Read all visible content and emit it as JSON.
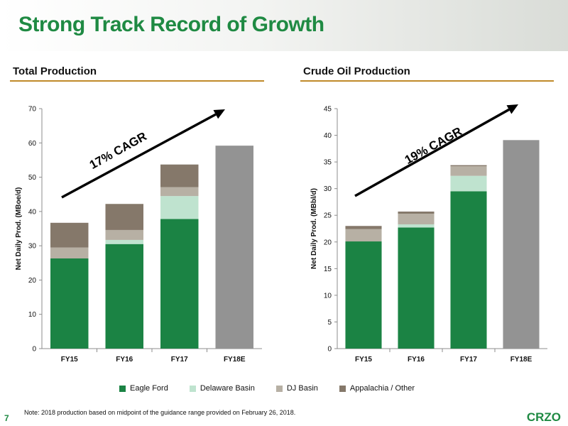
{
  "slide": {
    "title": "Strong Track Record of Growth",
    "note": "Note: 2018 production based on midpoint of the guidance range provided on February 26, 2018.",
    "page_number": "7",
    "logo": "CRZO"
  },
  "colors": {
    "eagle_ford": "#1b8344",
    "delaware": "#bfe3cf",
    "dj": "#b7b0a4",
    "appalachia": "#85786a",
    "estimate": "#939393",
    "accent": "#1f8a43",
    "rule": "#c08a2a"
  },
  "legend": [
    {
      "name": "Eagle Ford",
      "color": "#1b8344"
    },
    {
      "name": "Delaware Basin",
      "color": "#bfe3cf"
    },
    {
      "name": "DJ Basin",
      "color": "#b7b0a4"
    },
    {
      "name": "Appalachia / Other",
      "color": "#85786a"
    }
  ],
  "chart_data": [
    {
      "type": "bar",
      "stacked": true,
      "title": "Total Production",
      "ylabel": "Net Daily Prod. (MBoe/d)",
      "ylim": [
        0,
        70
      ],
      "yticks": [
        0,
        10,
        20,
        30,
        40,
        50,
        60,
        70
      ],
      "categories": [
        "FY15",
        "FY16",
        "FY17",
        "FY18E"
      ],
      "series": [
        {
          "name": "Eagle Ford",
          "values": [
            26.3,
            30.5,
            37.8,
            0
          ]
        },
        {
          "name": "Delaware Basin",
          "values": [
            0,
            1.2,
            6.7,
            0
          ]
        },
        {
          "name": "DJ Basin",
          "values": [
            3.2,
            2.9,
            2.6,
            0
          ]
        },
        {
          "name": "Appalachia / Other",
          "values": [
            7.2,
            7.6,
            6.6,
            0
          ]
        }
      ],
      "total_estimate": {
        "category": "FY18E",
        "value": 59.2
      },
      "annotation": "17% CAGR"
    },
    {
      "type": "bar",
      "stacked": true,
      "title": "Crude Oil Production",
      "ylabel": "Net Daily Prod. (MBbl/d)",
      "ylim": [
        0,
        45
      ],
      "yticks": [
        0,
        5,
        10,
        15,
        20,
        25,
        30,
        35,
        40,
        45
      ],
      "categories": [
        "FY15",
        "FY16",
        "FY17",
        "FY18E"
      ],
      "series": [
        {
          "name": "Eagle Ford",
          "values": [
            20.1,
            22.7,
            29.5,
            0
          ]
        },
        {
          "name": "Delaware Basin",
          "values": [
            0,
            0.6,
            2.9,
            0
          ]
        },
        {
          "name": "DJ Basin",
          "values": [
            2.3,
            2.0,
            1.8,
            0
          ]
        },
        {
          "name": "Appalachia / Other",
          "values": [
            0.6,
            0.4,
            0.2,
            0
          ]
        }
      ],
      "total_estimate": {
        "category": "FY18E",
        "value": 39.1
      },
      "annotation": "19% CAGR"
    }
  ]
}
